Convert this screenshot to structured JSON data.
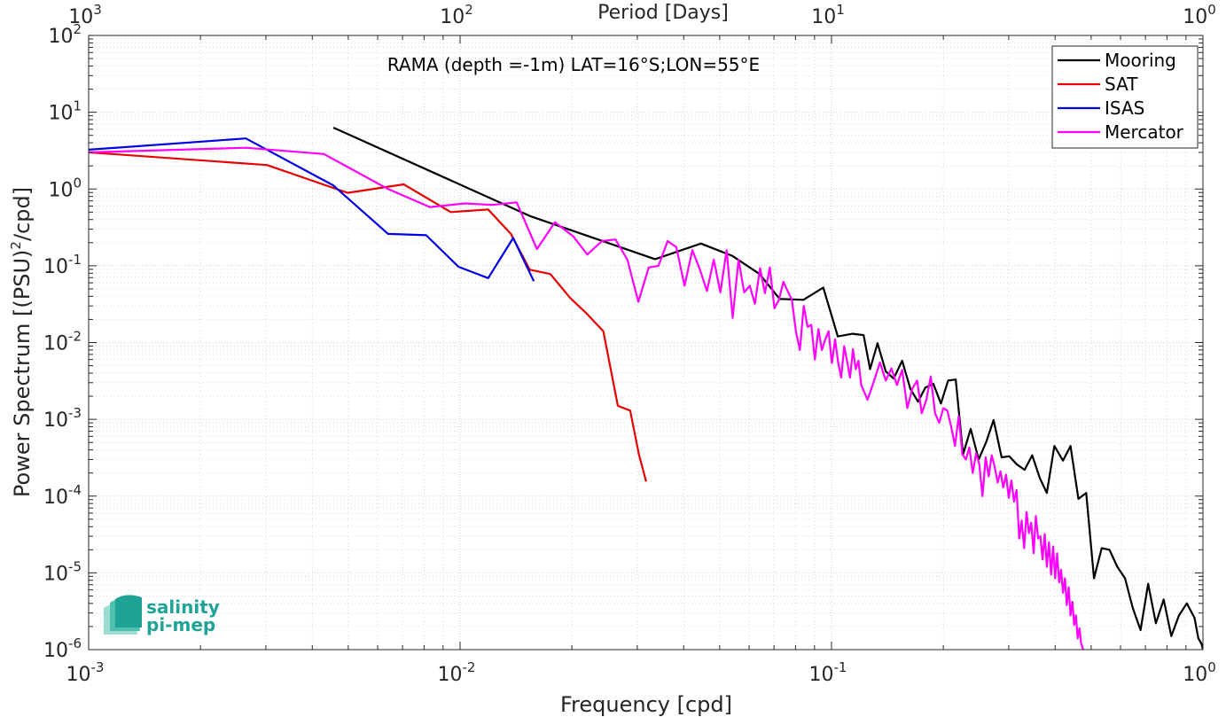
{
  "chart_data": {
    "type": "line",
    "title": "RAMA (depth =-1m) LAT=16°S;LON=55°E",
    "xlabel": "Frequency [cpd]",
    "ylabel": "Power Spectrum [(PSU)",
    "ylabel_sup": "2",
    "ylabel_tail": "/cpd]",
    "top_xlabel": "Period [Days]",
    "xscale": "log",
    "yscale": "log",
    "xlim": [
      0.001,
      1
    ],
    "ylim": [
      1e-06,
      100
    ],
    "grid": true,
    "legend_position": "top-right",
    "x_ticks": [
      {
        "base": "10",
        "exp": "-3",
        "value": 0.001
      },
      {
        "base": "10",
        "exp": "-2",
        "value": 0.01
      },
      {
        "base": "10",
        "exp": "-1",
        "value": 0.1
      },
      {
        "base": "10",
        "exp": "0",
        "value": 1
      }
    ],
    "top_ticks": [
      {
        "base": "10",
        "exp": "3",
        "value": 0.001
      },
      {
        "base": "10",
        "exp": "2",
        "value": 0.01
      },
      {
        "base": "10",
        "exp": "1",
        "value": 0.1
      },
      {
        "base": "10",
        "exp": "0",
        "value": 1
      }
    ],
    "y_ticks": [
      {
        "base": "10",
        "exp": "2",
        "value": 100
      },
      {
        "base": "10",
        "exp": "1",
        "value": 10
      },
      {
        "base": "10",
        "exp": "0",
        "value": 1
      },
      {
        "base": "10",
        "exp": "-1",
        "value": 0.1
      },
      {
        "base": "10",
        "exp": "-2",
        "value": 0.01
      },
      {
        "base": "10",
        "exp": "-3",
        "value": 0.001
      },
      {
        "base": "10",
        "exp": "-4",
        "value": 0.0001
      },
      {
        "base": "10",
        "exp": "-5",
        "value": 1e-05
      },
      {
        "base": "10",
        "exp": "-6",
        "value": 1e-06
      }
    ],
    "series": [
      {
        "name": "Mooring",
        "color": "#000000",
        "x": [
          0.00456,
          0.0155,
          0.0335,
          0.0445,
          0.054,
          0.064,
          0.0725,
          0.084,
          0.095,
          0.104,
          0.114,
          0.122,
          0.127,
          0.133,
          0.14,
          0.147,
          0.155,
          0.163,
          0.171,
          0.179,
          0.188,
          0.197,
          0.206,
          0.216,
          0.226,
          0.237,
          0.249,
          0.261,
          0.273,
          0.287,
          0.301,
          0.315,
          0.331,
          0.347,
          0.364,
          0.38,
          0.398,
          0.42,
          0.44,
          0.462,
          0.485,
          0.509,
          0.534,
          0.56,
          0.588,
          0.617,
          0.647,
          0.679,
          0.712,
          0.747,
          0.784,
          0.822,
          0.862,
          0.905,
          0.949,
          0.972,
          0.99,
          1.0
        ],
        "y": [
          6.3,
          0.44,
          0.122,
          0.195,
          0.135,
          0.078,
          0.037,
          0.036,
          0.052,
          0.012,
          0.013,
          0.0125,
          0.0045,
          0.0098,
          0.0042,
          0.0034,
          0.0058,
          0.0025,
          0.0017,
          0.0026,
          0.0029,
          0.0016,
          0.0032,
          0.0033,
          0.00035,
          0.00075,
          0.0003,
          0.00051,
          0.00098,
          0.00032,
          0.00033,
          0.00026,
          0.00022,
          0.00034,
          0.00017,
          0.00011,
          0.00045,
          0.00029,
          0.00045,
          9.2e-05,
          0.00011,
          8.5e-06,
          2.1e-05,
          2e-05,
          1.2e-05,
          8.5e-06,
          3.5e-06,
          1.8e-06,
          7.2e-06,
          2.2e-06,
          4.5e-06,
          1.5e-06,
          2.8e-06,
          4e-06,
          2.6e-06,
          1.4e-06,
          1.2e-06,
          1e-06
        ]
      },
      {
        "name": "SAT",
        "color": "#e60000",
        "x": [
          0.001,
          0.00302,
          0.00498,
          0.00705,
          0.00944,
          0.0119,
          0.0137,
          0.0154,
          0.0175,
          0.0198,
          0.0219,
          0.0243,
          0.0266,
          0.0287,
          0.0303,
          0.0317
        ],
        "y": [
          3.0,
          2.05,
          0.89,
          1.15,
          0.5,
          0.54,
          0.26,
          0.089,
          0.078,
          0.038,
          0.024,
          0.014,
          0.0015,
          0.0013,
          0.00035,
          0.000155
        ]
      },
      {
        "name": "ISAS",
        "color": "#0000e6",
        "x": [
          0.001,
          0.00265,
          0.00455,
          0.0064,
          0.0081,
          0.0099,
          0.0119,
          0.0139,
          0.0158
        ],
        "y": [
          3.25,
          4.55,
          1.12,
          0.26,
          0.25,
          0.097,
          0.069,
          0.23,
          0.063
        ]
      },
      {
        "name": "Mercator",
        "color": "#ff00ff",
        "x": [
          0.001,
          0.00265,
          0.0043,
          0.0064,
          0.0083,
          0.0103,
          0.0122,
          0.0142,
          0.0161,
          0.018,
          0.0202,
          0.022,
          0.0241,
          0.0262,
          0.0282,
          0.0302,
          0.0322,
          0.0342,
          0.0362,
          0.0382,
          0.0402,
          0.0422,
          0.0442,
          0.0462,
          0.0482,
          0.0502,
          0.0522,
          0.0542,
          0.0562,
          0.0582,
          0.0602,
          0.0622,
          0.0642,
          0.0662,
          0.0682,
          0.0702,
          0.0722,
          0.0742,
          0.0762,
          0.0782,
          0.0802,
          0.0822,
          0.0842,
          0.0862,
          0.0882,
          0.0902,
          0.0922,
          0.0942,
          0.0962,
          0.0982,
          0.1002,
          0.1022,
          0.1042,
          0.1062,
          0.1082,
          0.1102,
          0.1122,
          0.1142,
          0.1162,
          0.1182,
          0.1202,
          0.125,
          0.13,
          0.135,
          0.14,
          0.145,
          0.15,
          0.155,
          0.16,
          0.165,
          0.17,
          0.175,
          0.18,
          0.185,
          0.19,
          0.195,
          0.2,
          0.205,
          0.21,
          0.215,
          0.22,
          0.225,
          0.23,
          0.235,
          0.24,
          0.245,
          0.25,
          0.255,
          0.26,
          0.265,
          0.27,
          0.275,
          0.28,
          0.285,
          0.29,
          0.295,
          0.3,
          0.305,
          0.31,
          0.315,
          0.32,
          0.325,
          0.33,
          0.335,
          0.34,
          0.345,
          0.35,
          0.355,
          0.36,
          0.365,
          0.37,
          0.375,
          0.38,
          0.385,
          0.39,
          0.395,
          0.4,
          0.405,
          0.41,
          0.415,
          0.42,
          0.425,
          0.43,
          0.435,
          0.44,
          0.445,
          0.45,
          0.455,
          0.46,
          0.465,
          0.47,
          0.476
        ],
        "y": [
          3.0,
          3.45,
          2.85,
          1.0,
          0.58,
          0.65,
          0.62,
          0.67,
          0.165,
          0.37,
          0.24,
          0.14,
          0.21,
          0.22,
          0.12,
          0.034,
          0.095,
          0.1,
          0.21,
          0.175,
          0.055,
          0.16,
          0.09,
          0.047,
          0.12,
          0.045,
          0.16,
          0.021,
          0.12,
          0.045,
          0.055,
          0.032,
          0.093,
          0.044,
          0.095,
          0.028,
          0.036,
          0.062,
          0.047,
          0.036,
          0.014,
          0.008,
          0.03,
          0.016,
          0.017,
          0.006,
          0.015,
          0.008,
          0.011,
          0.014,
          0.0054,
          0.011,
          0.0055,
          0.0035,
          0.009,
          0.0056,
          0.0035,
          0.0082,
          0.0045,
          0.0058,
          0.0028,
          0.0018,
          0.0031,
          0.0055,
          0.0032,
          0.0046,
          0.0028,
          0.0044,
          0.0014,
          0.0025,
          0.0032,
          0.0012,
          0.0018,
          0.0036,
          0.0012,
          0.0009,
          0.0014,
          0.0013,
          0.0008,
          0.00045,
          0.0011,
          0.00035,
          0.0003,
          0.00043,
          0.0002,
          0.00036,
          0.00026,
          0.0001,
          0.00032,
          0.00018,
          0.00034,
          0.00024,
          0.00015,
          0.00021,
          0.00013,
          0.00019,
          9.5e-05,
          0.00016,
          8.5e-05,
          0.00012,
          2.8e-05,
          4.8e-05,
          2.1e-05,
          6.2e-05,
          3.3e-05,
          4.5e-05,
          1.8e-05,
          5.5e-05,
          2.8e-05,
          3e-05,
          1.5e-05,
          3.2e-05,
          1.2e-05,
          2.5e-05,
          9.5e-06,
          2.2e-05,
          8.5e-06,
          1.8e-05,
          7.5e-06,
          1.1e-05,
          5.5e-06,
          8.5e-06,
          3.8e-06,
          6.5e-06,
          2.8e-06,
          4.2e-06,
          2.1e-06,
          2.8e-06,
          1.4e-06,
          1.9e-06,
          1.2e-06,
          1e-06
        ]
      }
    ]
  },
  "logo": {
    "line1": "salinity",
    "line2": "pi-mep",
    "color": "#1fa396",
    "light_color": "#9ddcd0"
  }
}
